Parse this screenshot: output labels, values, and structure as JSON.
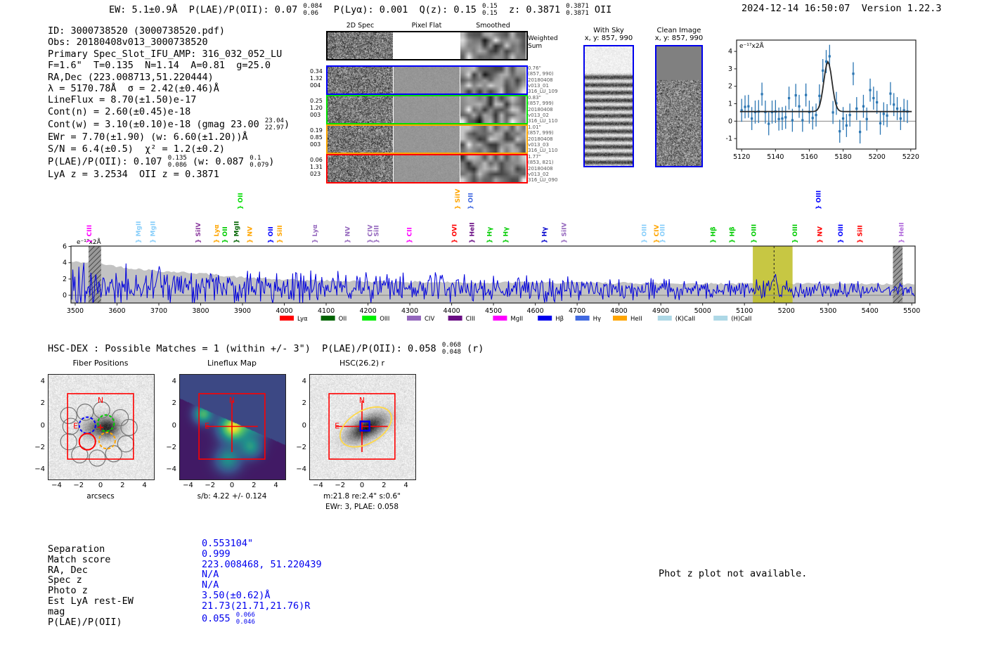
{
  "header": {
    "summary_segments": [
      {
        "t": "EW: 5.1±0.9Å  P(LAE)/P(OII): 0.07 "
      },
      {
        "hi": "0.084",
        "lo": "0.06"
      },
      {
        "t": "  P(Lyα): 0.001  Q(z): 0.15 "
      },
      {
        "hi": "0.15",
        "lo": "0.15"
      },
      {
        "t": "  z: 0.3871 "
      },
      {
        "hi": "0.3871",
        "lo": "0.3871"
      },
      {
        "t": " OII"
      }
    ],
    "timestamp": "2024-12-14 16:50:07",
    "version": "Version 1.22.3"
  },
  "info_block": {
    "lines": [
      [
        {
          "t": "ID: 3000738520 (3000738520.pdf)"
        }
      ],
      [
        {
          "t": "Obs: 20180408v013_3000738520"
        }
      ],
      [
        {
          "t": "Primary Spec_Slot_IFU_AMP: 316_032_052_LU"
        }
      ],
      [
        {
          "t": "F=1.6\"  T=0.135  N=1.14  A=0.81  g=25.0"
        }
      ],
      [
        {
          "t": "RA,Dec (223.008713,51.220444)"
        }
      ],
      [
        {
          "t": "λ = 5170.78Å  σ = 2.42(±0.46)Å"
        }
      ],
      [
        {
          "t": "LineFlux = 8.70(±1.50)e-17"
        }
      ],
      [
        {
          "t": "Cont(n) = 2.60(±0.45)e-18"
        }
      ],
      [
        {
          "t": "Cont(w) = 3.10(±0.10)e-18 (gmag 23.00 "
        },
        {
          "hi": "23.04",
          "lo": "22.97"
        },
        {
          "t": ")"
        }
      ],
      [
        {
          "t": "EWr = 7.70(±1.90) (w: 6.60(±1.20))Å"
        }
      ],
      [
        {
          "t": "S/N = 6.4(±0.5)  χ² = 1.2(±0.2)"
        }
      ],
      [
        {
          "t": "P(LAE)/P(OII): 0.107 "
        },
        {
          "hi": "0.135",
          "lo": "0.086"
        },
        {
          "t": " (w: 0.087 "
        },
        {
          "hi": "0.1",
          "lo": "0.079"
        },
        {
          "t": ")"
        }
      ],
      [
        {
          "t": "LyA z = 3.2534  OII z = 0.3871"
        }
      ]
    ]
  },
  "cutouts_2d": {
    "col_titles": [
      "2D Spec",
      "Pixel Flat",
      "Smoothed"
    ],
    "weighted_label": [
      "Weighted",
      "Sum"
    ],
    "rows": [
      {
        "color": "#0000ff",
        "left": [
          "0.34",
          "1.32",
          "004"
        ],
        "right": [
          "0.76\"",
          "(857, 990)",
          "20180408",
          "v013_01",
          "316_LU_109"
        ]
      },
      {
        "color": "#00dd00",
        "left": [
          "0.25",
          "1.20",
          "003"
        ],
        "right": [
          "0.83\"",
          "(857, 999)",
          "20180408",
          "v013_02",
          "316_LU_110"
        ]
      },
      {
        "color": "#ffa500",
        "left": [
          "0.19",
          "0.85",
          "003"
        ],
        "right": [
          "1.01\"",
          "(857, 999)",
          "20180408",
          "v013_03",
          "316_LU_110"
        ]
      },
      {
        "color": "#ff0000",
        "left": [
          "0.06",
          "1.31",
          "023"
        ],
        "right": [
          "1.77\"",
          "(853, 821)",
          "20180408",
          "v013_02",
          "316_LU_090"
        ]
      }
    ]
  },
  "sky_panels": {
    "with_sky": {
      "title": "With Sky",
      "subtitle": "x, y: 857, 990"
    },
    "clean": {
      "title": "Clean Image",
      "subtitle": "x, y: 857, 990"
    }
  },
  "match_line_segments": [
    {
      "t": "HSC-DEX : Possible Matches = 1 (within +/- 3\")  P(LAE)/P(OII): 0.058 "
    },
    {
      "hi": "0.068",
      "lo": "0.048"
    },
    {
      "t": " (r)"
    }
  ],
  "phot_z_note": "Phot z plot not available.",
  "match_table": {
    "labels": [
      "Separation",
      "Match score",
      "RA, Dec",
      "Spec z",
      "Photo z",
      "Est LyA rest-EW",
      "mag",
      "P(LAE)/P(OII)"
    ],
    "values": [
      [
        {
          "t": "0.553104\""
        }
      ],
      [
        {
          "t": "0.999"
        }
      ],
      [
        {
          "t": "223.008468, 51.220439"
        }
      ],
      [
        {
          "t": "N/A"
        }
      ],
      [
        {
          "t": "N/A"
        }
      ],
      [
        {
          "t": "3.50(±0.62)Å"
        }
      ],
      [
        {
          "t": "21.73(21.71,21.76)R"
        }
      ],
      [
        {
          "t": "0.055 "
        },
        {
          "hi": "0.066",
          "lo": "0.046"
        }
      ]
    ],
    "value_color": "#0000ee"
  },
  "chart_data": [
    {
      "id": "zoomed_line_fit",
      "type": "scatter",
      "annotation": "e⁻¹⁷x2Å",
      "xlim": [
        5117,
        5223
      ],
      "ylim": [
        -1.6,
        4.65
      ],
      "xticks": [
        5120,
        5140,
        5160,
        5180,
        5200,
        5220
      ],
      "yticks": [
        -1,
        0,
        1,
        2,
        3,
        4
      ],
      "x_start": 5120,
      "x_step": 2,
      "y": [
        0.62,
        0.82,
        0.85,
        0.15,
        0.52,
        0.55,
        1.55,
        0.52,
        -0.15,
        0.52,
        0.55,
        0.12,
        0.15,
        0.22,
        1.32,
        0.05,
        1.48,
        0.85,
        0.05,
        1.5,
        0.52,
        0.18,
        0.35,
        1.45,
        2.9,
        3.42,
        3.72,
        0.5,
        1.02,
        -0.58,
        0.15,
        -0.25,
        0.35,
        2.72,
        0.72,
        -0.62,
        0.85,
        0.12,
        1.78,
        1.32,
        1.08,
        -0.12,
        0.42,
        0.32,
        1.58,
        0.95,
        0.72,
        0.15,
        0.62,
        0.55
      ],
      "yerr": 0.66,
      "fit": {
        "baseline": 0.55,
        "amplitude": 2.85,
        "center": 5171.0,
        "sigma": 2.42
      },
      "point_color": "#2b76b3",
      "fit_color": "#2a2a2a",
      "zero_line_color": "#888888"
    },
    {
      "id": "full_spectrum",
      "type": "line",
      "annotation": "e⁻¹⁷x2Å",
      "xlim": [
        3490,
        5508
      ],
      "ylim": [
        -0.95,
        6.05
      ],
      "xticks": [
        3500,
        3600,
        3700,
        3800,
        3900,
        4000,
        4100,
        4200,
        4300,
        4400,
        4500,
        4600,
        4700,
        4800,
        4900,
        5000,
        5100,
        5200,
        5300,
        5400,
        5500
      ],
      "yticks": [
        0,
        2,
        4,
        6
      ],
      "line_color": "#0000dd",
      "continuum_color": "#c3c3c3",
      "continuum_top": {
        "x": [
          3500,
          3550,
          3620,
          3700,
          3800,
          3900,
          4000,
          4200,
          4400,
          4700,
          5000,
          5300,
          5500
        ],
        "y": [
          4.1,
          4.0,
          3.4,
          3.0,
          2.7,
          2.2,
          1.9,
          1.7,
          1.6,
          1.55,
          1.45,
          1.4,
          1.35
        ]
      },
      "noise_profile": {
        "base_start": 1.05,
        "base_end": 0.62,
        "sigma_start": 1.45,
        "sigma_end": 0.5,
        "seed": 42
      },
      "emission_peak": {
        "center": 5170.78,
        "amplitude": 1.75,
        "sigma": 4.5
      },
      "highlight_band": {
        "x0": 5120,
        "x1": 5215,
        "color": "#bdbd22",
        "opacity": 0.85,
        "center_line": 5170.78
      },
      "hatch_bands": [
        {
          "x0": 3532,
          "x1": 3562
        },
        {
          "x0": 5455,
          "x1": 5478
        }
      ],
      "zero_line_color": "#808080",
      "line_labels": [
        {
          "name": "CIII",
          "wl": 3534,
          "color": "#ff00ff",
          "raised": false
        },
        {
          "name": "MgII",
          "wl": 3651,
          "color": "#87cefa",
          "raised": false
        },
        {
          "name": "MgII",
          "wl": 3686,
          "color": "#87cefa",
          "raised": false
        },
        {
          "name": "SiIV",
          "wl": 3794,
          "color": "#8b3a9e",
          "raised": false
        },
        {
          "name": "Lyα",
          "wl": 3838,
          "color": "#ffa500",
          "raised": false
        },
        {
          "name": "OII",
          "wl": 3858,
          "color": "#00cc00",
          "raised": false
        },
        {
          "name": "MgII",
          "wl": 3886,
          "color": "#006400",
          "raised": false
        },
        {
          "name": "OII",
          "wl": 3895,
          "color": "#00dd00",
          "raised": true
        },
        {
          "name": "NV",
          "wl": 3918,
          "color": "#ffa500",
          "raised": false
        },
        {
          "name": "OII",
          "wl": 3967,
          "color": "#0000ff",
          "raised": false
        },
        {
          "name": "SiII",
          "wl": 3989,
          "color": "#ffa500",
          "raised": false
        },
        {
          "name": "Lyα",
          "wl": 4073,
          "color": "#9467bd",
          "raised": false
        },
        {
          "name": "NV",
          "wl": 4151,
          "color": "#9467bd",
          "raised": false
        },
        {
          "name": "CIV",
          "wl": 4205,
          "color": "#9467bd",
          "raised": false
        },
        {
          "name": "SiII",
          "wl": 4220,
          "color": "#9467bd",
          "raised": false
        },
        {
          "name": "CII",
          "wl": 4299,
          "color": "#ff00ff",
          "raised": false
        },
        {
          "name": "OVI",
          "wl": 4407,
          "color": "#ff0000",
          "raised": false
        },
        {
          "name": "SiIV",
          "wl": 4414,
          "color": "#ffa500",
          "raised": true
        },
        {
          "name": "OII",
          "wl": 4445,
          "color": "#4169e1",
          "raised": true
        },
        {
          "name": "HeII",
          "wl": 4449,
          "color": "#6a0d84",
          "raised": false
        },
        {
          "name": "Hγ",
          "wl": 4491,
          "color": "#00cc00",
          "raised": false
        },
        {
          "name": "Hγ",
          "wl": 4529,
          "color": "#00cc00",
          "raised": false
        },
        {
          "name": "Hγ",
          "wl": 4622,
          "color": "#0000cc",
          "raised": false
        },
        {
          "name": "SiIV",
          "wl": 4669,
          "color": "#9467bd",
          "raised": false
        },
        {
          "name": "OIII",
          "wl": 4860,
          "color": "#87cefa",
          "raised": false
        },
        {
          "name": "CIV",
          "wl": 4890,
          "color": "#ffa500",
          "raised": false
        },
        {
          "name": "OIII",
          "wl": 4904,
          "color": "#87cefa",
          "raised": false
        },
        {
          "name": "Hβ",
          "wl": 5025,
          "color": "#00cc00",
          "raised": false
        },
        {
          "name": "Hβ",
          "wl": 5070,
          "color": "#00cc00",
          "raised": false
        },
        {
          "name": "OIII",
          "wl": 5122,
          "color": "#00cc00",
          "raised": false
        },
        {
          "name": "OIII",
          "wl": 5221,
          "color": "#00cc00",
          "raised": false
        },
        {
          "name": "OIII",
          "wl": 5277,
          "color": "#0000ff",
          "raised": true
        },
        {
          "name": "NV",
          "wl": 5280,
          "color": "#ff0000",
          "raised": false
        },
        {
          "name": "OIII",
          "wl": 5330,
          "color": "#0000ff",
          "raised": false
        },
        {
          "name": "SiII",
          "wl": 5376,
          "color": "#ff0000",
          "raised": false
        },
        {
          "name": "HeII",
          "wl": 5475,
          "color": "#b069db",
          "raised": false
        }
      ],
      "legend": [
        {
          "label": "Lyα",
          "color": "#ff0000"
        },
        {
          "label": "OII",
          "color": "#006400"
        },
        {
          "label": "OIII",
          "color": "#00ee00"
        },
        {
          "label": "CIV",
          "color": "#9467bd"
        },
        {
          "label": "CIII",
          "color": "#6a0d84"
        },
        {
          "label": "MgII",
          "color": "#ff00ff"
        },
        {
          "label": "Hβ",
          "color": "#0000ee"
        },
        {
          "label": "Hγ",
          "color": "#4169e1"
        },
        {
          "label": "HeII",
          "color": "#ffa500"
        },
        {
          "label": "(K)CaII",
          "color": "#add8e6"
        },
        {
          "label": "(H)CaII",
          "color": "#add8e6"
        }
      ]
    },
    {
      "id": "fiber_positions",
      "type": "image-overlay",
      "title": "Fiber Positions",
      "xlabel": "arcsecs",
      "ticks": [
        -4,
        -2,
        0,
        2,
        4
      ],
      "axis_range": [
        -4.8,
        4.8
      ],
      "north_label": "N",
      "east_label": "E",
      "box_extent": 3,
      "overlay_color": "#ff0000",
      "fiber_radius": 0.74,
      "fibers_gray": [
        [
          -2.9,
          1.0
        ],
        [
          -1.4,
          1.3
        ],
        [
          0.1,
          1.5
        ],
        [
          2.6,
          -0.1
        ],
        [
          2.3,
          -1.6
        ],
        [
          1.2,
          -2.5
        ],
        [
          -0.3,
          -2.9
        ],
        [
          -1.9,
          -2.6
        ],
        [
          -2.9,
          -1.4
        ],
        [
          1.8,
          0.8
        ],
        [
          -2.7,
          0.0
        ]
      ],
      "fibers_colored": [
        {
          "x": -1.2,
          "y": 0.1,
          "color": "#0000ff",
          "solid": false
        },
        {
          "x": 0.5,
          "y": 0.3,
          "color": "#00cc00",
          "solid": false
        },
        {
          "x": 0.6,
          "y": -1.3,
          "color": "#ffa500",
          "solid": false
        },
        {
          "x": -1.2,
          "y": -1.4,
          "color": "#ff0000",
          "solid": true
        }
      ]
    },
    {
      "id": "lineflux_map",
      "type": "heatmap",
      "title": "Lineflux Map",
      "xlabel": "s/b: 4.22 +/- 0.124",
      "ticks": [
        -4,
        -2,
        0,
        2,
        4
      ],
      "axis_range": [
        -4.8,
        4.8
      ],
      "north_label": "N",
      "east_label": "E",
      "box_extent": 3,
      "overlay_color": "#ff0000",
      "crosshair_halflen": 2.35,
      "colormap": "viridis",
      "sb_value": 4.22,
      "sb_err": 0.124
    },
    {
      "id": "hsc_r",
      "type": "image-overlay",
      "title": "HSC(26.2) r",
      "xlabel": "m:21.8 re:2.4\" s:0.6\"",
      "xlabel2": "EWr: 3, PLAE: 0.058",
      "ticks": [
        -4,
        -2,
        0,
        2,
        4
      ],
      "axis_range": [
        -4.8,
        4.8
      ],
      "north_label": "N",
      "east_label": "E",
      "box_extent": 3,
      "overlay_color": "#ff0000",
      "crosshair_halflen": 2.35,
      "ellipse": {
        "cx": 0.35,
        "cy": -0.05,
        "rx": 2.55,
        "ry": 1.5,
        "angle": -30,
        "color": "#ffd94a"
      },
      "center_marker_color": "#0000ee"
    }
  ]
}
